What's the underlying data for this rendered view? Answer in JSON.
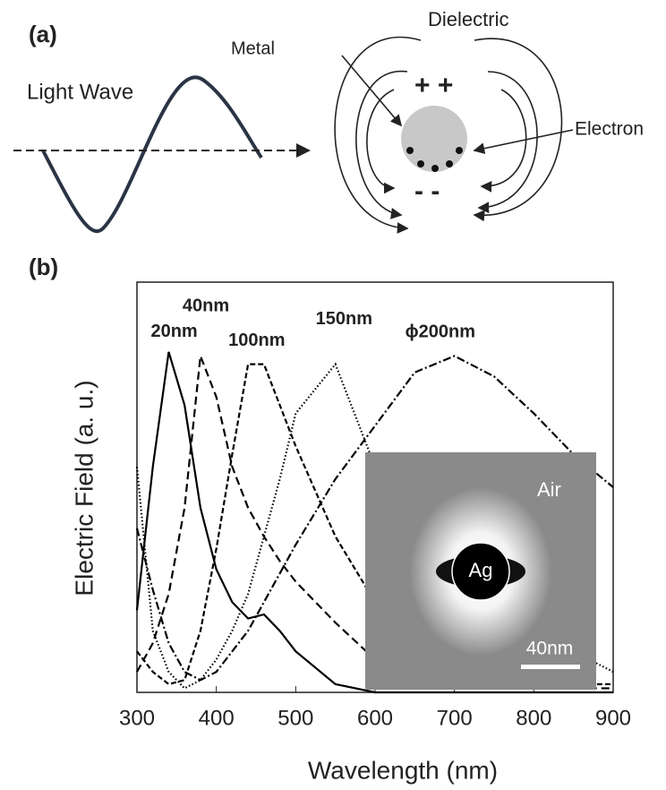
{
  "diagram": {
    "panel_label": "(a)",
    "light_wave": "Light Wave",
    "metal": "Metal",
    "dielectric": "Dielectric",
    "electron": "Electron",
    "plus": "+ +",
    "minus": "- -"
  },
  "chart_data": {
    "type": "line",
    "panel_label": "(b)",
    "x_label": "Wavelength (nm)",
    "y_label": "Electric Field (a. u.)",
    "x": [
      300,
      320,
      340,
      360,
      380,
      400,
      420,
      440,
      460,
      480,
      500,
      550,
      600,
      650,
      700,
      750,
      800,
      850,
      900
    ],
    "xlim": [
      300,
      900
    ],
    "xticks": [
      300,
      400,
      500,
      600,
      700,
      800,
      900
    ],
    "ylim": [
      0,
      1
    ],
    "series": [
      {
        "name": "20nm",
        "color": "#000000",
        "dash": "none",
        "values": [
          0.2,
          0.55,
          0.83,
          0.7,
          0.45,
          0.3,
          0.22,
          0.18,
          0.19,
          0.15,
          0.1,
          0.02,
          0,
          0,
          0,
          0,
          0,
          0,
          0
        ]
      },
      {
        "name": "40nm",
        "color": "#000000",
        "dash": "9 5",
        "values": [
          0.05,
          0.12,
          0.24,
          0.45,
          0.82,
          0.72,
          0.55,
          0.45,
          0.38,
          0.32,
          0.27,
          0.17,
          0.08,
          0.03,
          0.02,
          0.01,
          0.01,
          0.01,
          0.01
        ]
      },
      {
        "name": "100nm",
        "color": "#000000",
        "dash": "6 3",
        "values": [
          0.1,
          0.05,
          0.02,
          0.03,
          0.15,
          0.35,
          0.58,
          0.8,
          0.8,
          0.7,
          0.6,
          0.38,
          0.22,
          0.12,
          0.07,
          0.04,
          0.03,
          0.02,
          0.02
        ]
      },
      {
        "name": "150nm",
        "color": "#000000",
        "dash": "1.5 2.5",
        "values": [
          0.55,
          0.15,
          0.05,
          0.01,
          0.03,
          0.08,
          0.15,
          0.24,
          0.38,
          0.52,
          0.68,
          0.8,
          0.55,
          0.35,
          0.25,
          0.18,
          0.15,
          0.1,
          0.05
        ]
      },
      {
        "name": "ϕ200nm",
        "color": "#000000",
        "dash": "9 3 2 3",
        "values": [
          0.4,
          0.25,
          0.12,
          0.05,
          0.03,
          0.05,
          0.1,
          0.15,
          0.22,
          0.29,
          0.36,
          0.52,
          0.65,
          0.78,
          0.82,
          0.77,
          0.68,
          0.58,
          0.5
        ]
      }
    ],
    "inset": {
      "medium": "Air",
      "particle": "Ag",
      "scale": "40nm"
    }
  }
}
